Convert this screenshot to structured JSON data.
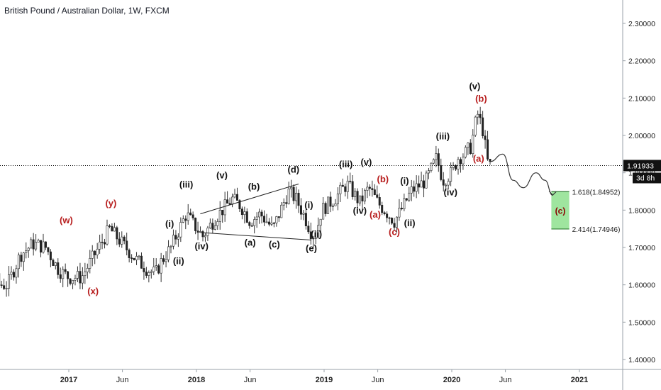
{
  "header": {
    "title": "British Pound / Australian Dollar, 1W, FXCM"
  },
  "chart_data": {
    "type": "candlestick",
    "ylim": [
      1.375,
      2.375
    ],
    "y_ticks": [
      "2.30000",
      "2.20000",
      "2.10000",
      "2.00000",
      "1.90000",
      "1.80000",
      "1.70000",
      "1.60000",
      "1.50000",
      "1.40000"
    ],
    "x_ticks": [
      {
        "label": "2017",
        "t": 2017.0,
        "bold": true
      },
      {
        "label": "Jun",
        "t": 2017.42,
        "bold": false
      },
      {
        "label": "2018",
        "t": 2018.0,
        "bold": true
      },
      {
        "label": "Jun",
        "t": 2018.42,
        "bold": false
      },
      {
        "label": "2019",
        "t": 2019.0,
        "bold": true
      },
      {
        "label": "Jun",
        "t": 2019.42,
        "bold": false
      },
      {
        "label": "2020",
        "t": 2020.0,
        "bold": true
      },
      {
        "label": "Jun",
        "t": 2020.42,
        "bold": false
      },
      {
        "label": "2021",
        "t": 2021.0,
        "bold": true
      }
    ],
    "current_price": "1.91933",
    "countdown": "3d 8h",
    "price_path": [
      [
        2016.05,
        1.92
      ],
      [
        2016.1,
        1.79
      ],
      [
        2016.25,
        1.72
      ],
      [
        2016.35,
        1.68
      ],
      [
        2016.45,
        1.6
      ],
      [
        2016.52,
        1.6
      ],
      [
        2016.62,
        1.68
      ],
      [
        2016.72,
        1.71
      ],
      [
        2016.82,
        1.7
      ],
      [
        2016.92,
        1.64
      ],
      [
        2017.0,
        1.62
      ],
      [
        2017.1,
        1.62
      ],
      [
        2017.2,
        1.68
      ],
      [
        2017.32,
        1.75
      ],
      [
        2017.42,
        1.71
      ],
      [
        2017.52,
        1.67
      ],
      [
        2017.62,
        1.64
      ],
      [
        2017.68,
        1.63
      ],
      [
        2017.72,
        1.66
      ],
      [
        2017.8,
        1.7
      ],
      [
        2017.92,
        1.79
      ],
      [
        2017.98,
        1.76
      ],
      [
        2018.05,
        1.73
      ],
      [
        2018.15,
        1.78
      ],
      [
        2018.28,
        1.83
      ],
      [
        2018.35,
        1.81
      ],
      [
        2018.42,
        1.77
      ],
      [
        2018.5,
        1.79
      ],
      [
        2018.6,
        1.75
      ],
      [
        2018.72,
        1.85
      ],
      [
        2018.78,
        1.83
      ],
      [
        2018.85,
        1.78
      ],
      [
        2018.9,
        1.74
      ],
      [
        2018.93,
        1.73
      ],
      [
        2018.98,
        1.8
      ],
      [
        2019.08,
        1.83
      ],
      [
        2019.18,
        1.87
      ],
      [
        2019.28,
        1.82
      ],
      [
        2019.35,
        1.86
      ],
      [
        2019.42,
        1.82
      ],
      [
        2019.5,
        1.79
      ],
      [
        2019.55,
        1.77
      ],
      [
        2019.62,
        1.81
      ],
      [
        2019.68,
        1.85
      ],
      [
        2019.8,
        1.88
      ],
      [
        2019.88,
        1.94
      ],
      [
        2019.93,
        1.88
      ],
      [
        2020.0,
        1.9
      ],
      [
        2020.05,
        1.94
      ],
      [
        2020.1,
        1.95
      ],
      [
        2020.15,
        1.97
      ],
      [
        2020.2,
        2.06
      ],
      [
        2020.24,
        2.02
      ],
      [
        2020.28,
        1.93
      ],
      [
        2020.3,
        1.92
      ]
    ],
    "projection": [
      [
        2020.3,
        1.93
      ],
      [
        2020.4,
        1.95
      ],
      [
        2020.48,
        1.88
      ],
      [
        2020.56,
        1.86
      ],
      [
        2020.66,
        1.9
      ],
      [
        2020.73,
        1.88
      ],
      [
        2020.79,
        1.84
      ]
    ],
    "triangle_upper": [
      [
        2018.03,
        1.79
      ],
      [
        2018.8,
        1.87
      ]
    ],
    "triangle_lower": [
      [
        2018.03,
        1.74
      ],
      [
        2018.9,
        1.72
      ]
    ],
    "fib_levels": [
      {
        "label": "1.618(1.84952)",
        "value": 1.84952
      },
      {
        "label": "2.414(1.74946)",
        "value": 1.74946
      }
    ],
    "fib_box": {
      "t_from": 2020.78,
      "t_to": 2020.92,
      "label": "(c)"
    },
    "annotations": [
      {
        "text": "(w)",
        "t": 2016.98,
        "y": 1.765,
        "color": "red"
      },
      {
        "text": "(x)",
        "t": 2017.19,
        "y": 1.575,
        "color": "red"
      },
      {
        "text": "(y)",
        "t": 2017.33,
        "y": 1.81,
        "color": "red"
      },
      {
        "text": "(i)",
        "t": 2017.79,
        "y": 1.755,
        "color": "black"
      },
      {
        "text": "(ii)",
        "t": 2017.86,
        "y": 1.655,
        "color": "black"
      },
      {
        "text": "(iii)",
        "t": 2017.92,
        "y": 1.86,
        "color": "black"
      },
      {
        "text": "(iv)",
        "t": 2018.04,
        "y": 1.695,
        "color": "black"
      },
      {
        "text": "(v)",
        "t": 2018.2,
        "y": 1.885,
        "color": "black"
      },
      {
        "text": "(a)",
        "t": 2018.42,
        "y": 1.705,
        "color": "black"
      },
      {
        "text": "(b)",
        "t": 2018.45,
        "y": 1.855,
        "color": "black"
      },
      {
        "text": "(c)",
        "t": 2018.61,
        "y": 1.7,
        "color": "black"
      },
      {
        "text": "(d)",
        "t": 2018.76,
        "y": 1.9,
        "color": "black"
      },
      {
        "text": "(i)",
        "t": 2018.88,
        "y": 1.805,
        "color": "black"
      },
      {
        "text": "(ii)",
        "t": 2018.94,
        "y": 1.728,
        "color": "black"
      },
      {
        "text": "(e)",
        "t": 2018.9,
        "y": 1.69,
        "color": "black"
      },
      {
        "text": "(iii)",
        "t": 2019.17,
        "y": 1.915,
        "color": "black"
      },
      {
        "text": "(v)",
        "t": 2019.33,
        "y": 1.92,
        "color": "black"
      },
      {
        "text": "(iv)",
        "t": 2019.28,
        "y": 1.79,
        "color": "black"
      },
      {
        "text": "(a)",
        "t": 2019.4,
        "y": 1.78,
        "color": "red"
      },
      {
        "text": "(b)",
        "t": 2019.46,
        "y": 1.875,
        "color": "red"
      },
      {
        "text": "(c)",
        "t": 2019.55,
        "y": 1.733,
        "color": "red"
      },
      {
        "text": "(i)",
        "t": 2019.63,
        "y": 1.87,
        "color": "black"
      },
      {
        "text": "(ii)",
        "t": 2019.67,
        "y": 1.757,
        "color": "black"
      },
      {
        "text": "(iii)",
        "t": 2019.93,
        "y": 1.99,
        "color": "black"
      },
      {
        "text": "(iv)",
        "t": 2019.99,
        "y": 1.84,
        "color": "black"
      },
      {
        "text": "(v)",
        "t": 2020.18,
        "y": 2.123,
        "color": "black"
      },
      {
        "text": "(b)",
        "t": 2020.23,
        "y": 2.09,
        "color": "red"
      },
      {
        "text": "(a)",
        "t": 2020.21,
        "y": 1.93,
        "color": "red"
      }
    ]
  }
}
